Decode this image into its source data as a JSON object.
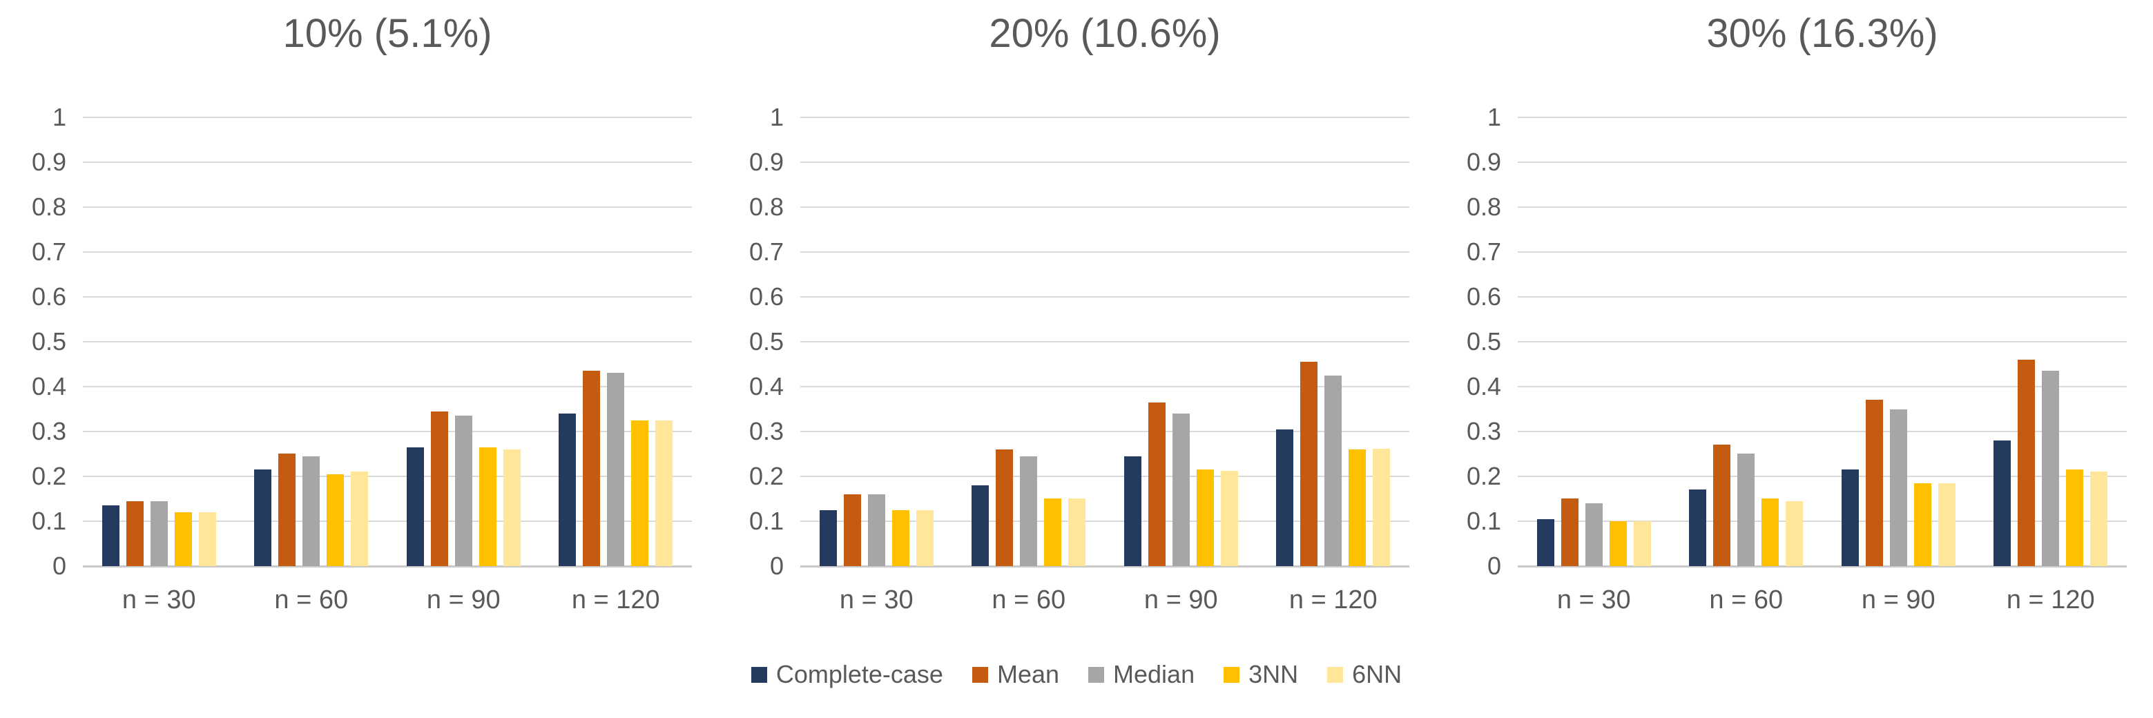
{
  "figure": {
    "background": "#FFFFFF",
    "text_color": "#595959",
    "grid_color": "#D9D9D9",
    "baseline_color": "#C9C9C9"
  },
  "axis": {
    "y_tick_labels": [
      "1",
      "0.9",
      "0.8",
      "0.7",
      "0.6",
      "0.5",
      "0.4",
      "0.3",
      "0.2",
      "0.1",
      "0"
    ],
    "y_min": 0,
    "y_max": 1,
    "grid": true
  },
  "legend": {
    "position": "bottom-center",
    "items": [
      {
        "label": "Complete-case",
        "color": "#243A5E"
      },
      {
        "label": "Mean",
        "color": "#C55A11"
      },
      {
        "label": "Median",
        "color": "#A6A6A6"
      },
      {
        "label": "3NN",
        "color": "#FFC000"
      },
      {
        "label": "6NN",
        "color": "#FFE699"
      }
    ]
  },
  "chart_data": [
    {
      "type": "bar",
      "title": "10% (5.1%)",
      "categories": [
        "n = 30",
        "n = 60",
        "n = 90",
        "n = 120"
      ],
      "ylim": [
        0,
        1
      ],
      "ylabel": "",
      "xlabel": "",
      "grid": true,
      "legend_position": "bottom",
      "series": [
        {
          "name": "Complete-case",
          "color": "#243A5E",
          "values": [
            0.135,
            0.215,
            0.265,
            0.34
          ]
        },
        {
          "name": "Mean",
          "color": "#C55A11",
          "values": [
            0.145,
            0.25,
            0.345,
            0.435
          ]
        },
        {
          "name": "Median",
          "color": "#A6A6A6",
          "values": [
            0.145,
            0.245,
            0.335,
            0.43
          ]
        },
        {
          "name": "3NN",
          "color": "#FFC000",
          "values": [
            0.12,
            0.205,
            0.265,
            0.325
          ]
        },
        {
          "name": "6NN",
          "color": "#FFE699",
          "values": [
            0.12,
            0.21,
            0.26,
            0.325
          ]
        }
      ]
    },
    {
      "type": "bar",
      "title": "20% (10.6%)",
      "categories": [
        "n = 30",
        "n = 60",
        "n = 90",
        "n = 120"
      ],
      "ylim": [
        0,
        1
      ],
      "ylabel": "",
      "xlabel": "",
      "grid": true,
      "legend_position": "bottom",
      "series": [
        {
          "name": "Complete-case",
          "color": "#243A5E",
          "values": [
            0.125,
            0.18,
            0.245,
            0.305
          ]
        },
        {
          "name": "Mean",
          "color": "#C55A11",
          "values": [
            0.16,
            0.26,
            0.365,
            0.455
          ]
        },
        {
          "name": "Median",
          "color": "#A6A6A6",
          "values": [
            0.16,
            0.245,
            0.34,
            0.425
          ]
        },
        {
          "name": "3NN",
          "color": "#FFC000",
          "values": [
            0.125,
            0.15,
            0.215,
            0.26
          ]
        },
        {
          "name": "6NN",
          "color": "#FFE699",
          "values": [
            0.125,
            0.15,
            0.213,
            0.262
          ]
        }
      ]
    },
    {
      "type": "bar",
      "title": "30% (16.3%)",
      "categories": [
        "n = 30",
        "n = 60",
        "n = 90",
        "n = 120"
      ],
      "ylim": [
        0,
        1
      ],
      "ylabel": "",
      "xlabel": "",
      "grid": true,
      "legend_position": "bottom",
      "series": [
        {
          "name": "Complete-case",
          "color": "#243A5E",
          "values": [
            0.105,
            0.17,
            0.215,
            0.28
          ]
        },
        {
          "name": "Mean",
          "color": "#C55A11",
          "values": [
            0.15,
            0.27,
            0.37,
            0.46
          ]
        },
        {
          "name": "Median",
          "color": "#A6A6A6",
          "values": [
            0.14,
            0.25,
            0.35,
            0.435
          ]
        },
        {
          "name": "3NN",
          "color": "#FFC000",
          "values": [
            0.1,
            0.15,
            0.185,
            0.215
          ]
        },
        {
          "name": "6NN",
          "color": "#FFE699",
          "values": [
            0.1,
            0.145,
            0.185,
            0.21
          ]
        }
      ]
    }
  ]
}
